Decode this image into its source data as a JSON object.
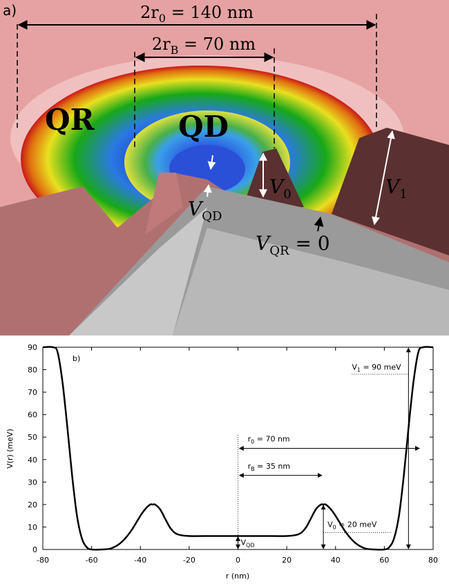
{
  "panel_a": {
    "label": "a)",
    "outer_diameter": {
      "main": "2r",
      "sub": "0",
      "rest": " = 140 nm"
    },
    "inner_diameter": {
      "main": "2r",
      "sub": "B",
      "rest": " = 70 nm"
    },
    "ring_label": "QR",
    "dot_label": "QD",
    "v0": {
      "main": "V",
      "sub": "0"
    },
    "v1": {
      "main": "V",
      "sub": "1"
    },
    "vqd": {
      "main": "V",
      "sub": "QD"
    },
    "vqr": {
      "main": "V",
      "sub": "QR",
      "rest": " = 0"
    }
  },
  "chart_data": {
    "type": "line",
    "title": "b)",
    "x_label": "r (nm)",
    "y_label": "V(r) (meV)",
    "x": [
      -80,
      -76,
      -74,
      -72,
      -70,
      -68,
      -66,
      -64,
      -62,
      -60,
      -56,
      -52,
      -48,
      -44,
      -40,
      -38,
      -36,
      -35,
      -34,
      -32,
      -30,
      -28,
      -26,
      -24,
      -20,
      -10,
      0,
      10,
      20,
      24,
      26,
      28,
      30,
      32,
      34,
      35,
      36,
      38,
      40,
      44,
      48,
      52,
      56,
      60,
      62,
      64,
      66,
      68,
      70,
      72,
      74,
      76,
      80
    ],
    "values": [
      90,
      90,
      88,
      75,
      55,
      33,
      15,
      5,
      1,
      0,
      0,
      0.5,
      3,
      8,
      15,
      18,
      20,
      20,
      20,
      18,
      14,
      10,
      7.5,
      6.5,
      6,
      6,
      6,
      6,
      6,
      6.5,
      7.5,
      10,
      14,
      18,
      20,
      20,
      20,
      18,
      15,
      8,
      3,
      0.5,
      0,
      0,
      1,
      5,
      15,
      33,
      55,
      75,
      88,
      90,
      90
    ],
    "color": "#000000",
    "xlim": [
      -80,
      80
    ],
    "xticks": [
      -80,
      -60,
      -40,
      -20,
      0,
      20,
      40,
      60,
      80
    ],
    "ylim": [
      0,
      90
    ],
    "yticks": [
      0,
      10,
      20,
      30,
      40,
      50,
      60,
      70,
      80,
      90
    ],
    "annotations": {
      "v1": {
        "main": "V",
        "sub": "1",
        "rest": " = 90 meV"
      },
      "r0": {
        "main": "r",
        "sub": "0",
        "rest": " = 70 nm"
      },
      "rb": {
        "main": "r",
        "sub": "B",
        "rest": " = 35 nm"
      },
      "v0": {
        "main": "V",
        "sub": "0",
        "rest": " = 20 meV"
      },
      "vqd": {
        "main": "V",
        "sub": "QD"
      }
    }
  }
}
